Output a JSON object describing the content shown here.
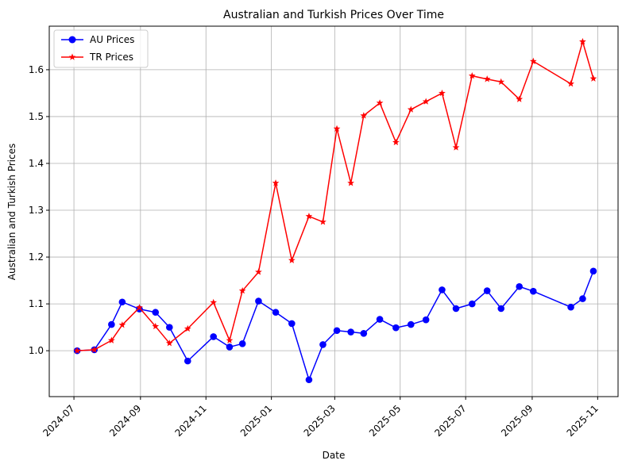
{
  "chart_data": {
    "type": "line",
    "title": "Australian and Turkish Prices Over Time",
    "xlabel": "Date",
    "ylabel": "Australian and Turkish Prices",
    "x_ticks": [
      "2024-07",
      "2024-09",
      "2024-11",
      "2025-01",
      "2025-03",
      "2025-05",
      "2025-07",
      "2025-09",
      "2025-11"
    ],
    "y_ticks": [
      "1.0",
      "1.1",
      "1.2",
      "1.3",
      "1.4",
      "1.5",
      "1.6"
    ],
    "xlim": [
      "2024-06-08",
      "2025-11-20"
    ],
    "ylim": [
      0.902,
      1.693
    ],
    "grid": true,
    "legend_position": "top-left",
    "series": [
      {
        "name": "AU Prices",
        "color": "#0000ff",
        "marker": "circle",
        "x": [
          "2024-07-04",
          "2024-07-20",
          "2024-08-05",
          "2024-08-15",
          "2024-08-31",
          "2024-09-15",
          "2024-09-28",
          "2024-10-15",
          "2024-11-08",
          "2024-11-23",
          "2024-12-05",
          "2024-12-20",
          "2025-01-05",
          "2025-01-20",
          "2025-02-05",
          "2025-02-18",
          "2025-03-03",
          "2025-03-16",
          "2025-03-28",
          "2025-04-12",
          "2025-04-27",
          "2025-05-11",
          "2025-05-25",
          "2025-06-09",
          "2025-06-22",
          "2025-07-07",
          "2025-07-21",
          "2025-08-03",
          "2025-08-20",
          "2025-09-02",
          "2025-10-07",
          "2025-10-18",
          "2025-10-28"
        ],
        "y": [
          1.0,
          1.002,
          1.056,
          1.104,
          1.089,
          1.082,
          1.05,
          0.978,
          1.03,
          1.008,
          1.015,
          1.106,
          1.082,
          1.058,
          0.938,
          1.013,
          1.043,
          1.04,
          1.037,
          1.067,
          1.049,
          1.056,
          1.066,
          1.13,
          1.09,
          1.1,
          1.128,
          1.09,
          1.137,
          1.127,
          1.093,
          1.111,
          1.17
        ]
      },
      {
        "name": "TR Prices",
        "color": "#ff0000",
        "marker": "star",
        "x": [
          "2024-07-04",
          "2024-07-20",
          "2024-08-05",
          "2024-08-15",
          "2024-08-31",
          "2024-09-15",
          "2024-09-28",
          "2024-10-15",
          "2024-11-08",
          "2024-11-23",
          "2024-12-05",
          "2024-12-20",
          "2025-01-05",
          "2025-01-20",
          "2025-02-05",
          "2025-02-18",
          "2025-03-03",
          "2025-03-16",
          "2025-03-28",
          "2025-04-12",
          "2025-04-27",
          "2025-05-11",
          "2025-05-25",
          "2025-06-09",
          "2025-06-22",
          "2025-07-07",
          "2025-07-21",
          "2025-08-03",
          "2025-08-20",
          "2025-09-02",
          "2025-10-07",
          "2025-10-18",
          "2025-10-28"
        ],
        "y": [
          1.0,
          1.002,
          1.022,
          1.055,
          1.092,
          1.052,
          1.016,
          1.047,
          1.103,
          1.022,
          1.128,
          1.168,
          1.358,
          1.193,
          1.287,
          1.275,
          1.474,
          1.358,
          1.502,
          1.529,
          1.445,
          1.515,
          1.532,
          1.55,
          1.434,
          1.587,
          1.58,
          1.574,
          1.537,
          1.618,
          1.57,
          1.66,
          1.581
        ]
      }
    ]
  }
}
